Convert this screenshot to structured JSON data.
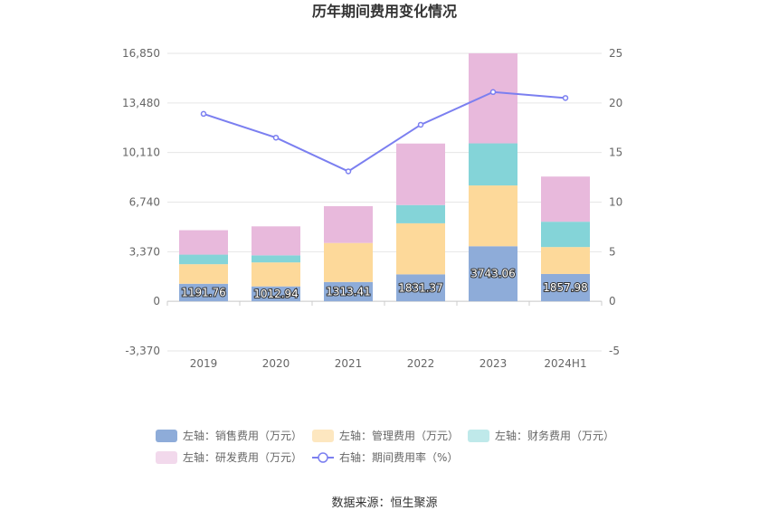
{
  "chart_data": {
    "type": "bar",
    "title": "历年期间费用变化情况",
    "categories": [
      "2019",
      "2020",
      "2021",
      "2022",
      "2023",
      "2024H1"
    ],
    "left_axis": {
      "ticks": [
        "-3,370",
        "0",
        "3,370",
        "6,740",
        "10,110",
        "13,480",
        "16,850"
      ],
      "ylim": [
        -3370,
        16850
      ]
    },
    "right_axis": {
      "ticks": [
        "-5",
        "0",
        "5",
        "10",
        "15",
        "20",
        "25"
      ],
      "ylim": [
        -5,
        25
      ]
    },
    "series": [
      {
        "name": "左轴：销售费用（万元）",
        "color": "#8eacd9",
        "legend_color": "#8eacd9",
        "values": [
          1191.76,
          1012.94,
          1313.41,
          1831.37,
          3743.06,
          1857.98
        ],
        "labels": [
          "1191.76",
          "1012.94",
          "1313.41",
          "1831.37",
          "3743.06",
          "1857.98"
        ]
      },
      {
        "name": "左轴：管理费用（万元）",
        "color": "#fdd99a",
        "legend_color": "#fde7c0",
        "values": [
          1330,
          1630,
          2650,
          3470,
          4130,
          1830
        ]
      },
      {
        "name": "左轴：财务费用（万元）",
        "color": "#84d4d8",
        "legend_color": "#bfe9ea",
        "values": [
          650,
          480,
          0,
          1240,
          2860,
          1720
        ]
      },
      {
        "name": "左轴：研发费用（万元）",
        "color": "#e8b9dc",
        "legend_color": "#f2d9ec",
        "values": [
          1660,
          1970,
          2500,
          4180,
          6120,
          3070
        ]
      }
    ],
    "line_series": {
      "name": "右轴：期间费用率（%）",
      "color": "#7b7ff0",
      "values": [
        18.9,
        16.5,
        13.1,
        17.8,
        21.1,
        20.5
      ]
    },
    "grid": true,
    "legend_position": "bottom"
  },
  "source": "数据来源：恒生聚源"
}
